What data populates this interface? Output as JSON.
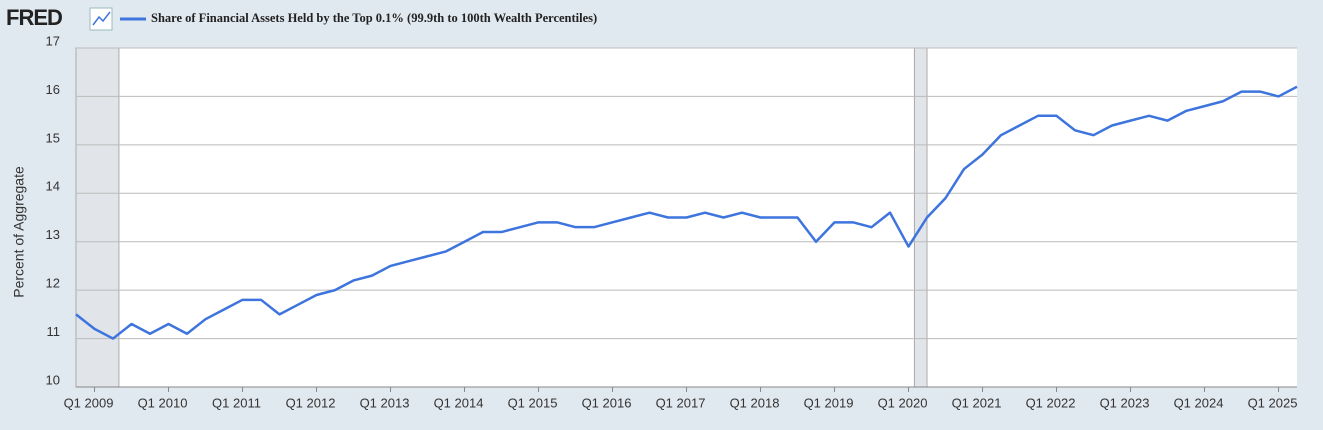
{
  "logo": "FRED",
  "chart_data": {
    "type": "line",
    "y_label": "Percent of Aggregate",
    "xlim": [
      2008.75,
      2025.25
    ],
    "ylim": [
      10,
      17
    ],
    "yticks": [
      10,
      11,
      12,
      13,
      14,
      15,
      16,
      17
    ],
    "xticks": [
      {
        "value": 2009,
        "label": "Q1 2009"
      },
      {
        "value": 2010,
        "label": "Q1 2010"
      },
      {
        "value": 2011,
        "label": "Q1 2011"
      },
      {
        "value": 2012,
        "label": "Q1 2012"
      },
      {
        "value": 2013,
        "label": "Q1 2013"
      },
      {
        "value": 2014,
        "label": "Q1 2014"
      },
      {
        "value": 2015,
        "label": "Q1 2015"
      },
      {
        "value": 2016,
        "label": "Q1 2016"
      },
      {
        "value": 2017,
        "label": "Q1 2017"
      },
      {
        "value": 2018,
        "label": "Q1 2018"
      },
      {
        "value": 2019,
        "label": "Q1 2019"
      },
      {
        "value": 2020,
        "label": "Q1 2020"
      },
      {
        "value": 2021,
        "label": "Q1 2021"
      },
      {
        "value": 2022,
        "label": "Q1 2022"
      },
      {
        "value": 2023,
        "label": "Q1 2023"
      },
      {
        "value": 2024,
        "label": "Q1 2024"
      },
      {
        "value": 2025,
        "label": "Q1 2025"
      }
    ],
    "grid": true,
    "recessions": [
      {
        "start": 2008.75,
        "end": 2009.33
      },
      {
        "start": 2020.08,
        "end": 2020.25
      }
    ],
    "x": [
      2008.75,
      2009,
      2009.25,
      2009.5,
      2009.75,
      2010,
      2010.25,
      2010.5,
      2010.75,
      2011,
      2011.25,
      2011.5,
      2011.75,
      2012,
      2012.25,
      2012.5,
      2012.75,
      2013,
      2013.25,
      2013.5,
      2013.75,
      2014,
      2014.25,
      2014.5,
      2014.75,
      2015,
      2015.25,
      2015.5,
      2015.75,
      2016,
      2016.25,
      2016.5,
      2016.75,
      2017,
      2017.25,
      2017.5,
      2017.75,
      2018,
      2018.25,
      2018.5,
      2018.75,
      2019,
      2019.25,
      2019.5,
      2019.75,
      2020,
      2020.25,
      2020.5,
      2020.75,
      2021,
      2021.25,
      2021.5,
      2021.75,
      2022,
      2022.25,
      2022.5,
      2022.75,
      2023,
      2023.25,
      2023.5,
      2023.75,
      2024,
      2024.25,
      2024.5,
      2024.75,
      2025,
      2025.25
    ],
    "series": [
      {
        "name": "Share of Financial Assets Held by the Top 0.1% (99.9th to 100th Wealth Percentiles)",
        "color": "#3d74dd",
        "values": [
          11.5,
          11.2,
          11.0,
          11.3,
          11.1,
          11.3,
          11.1,
          11.4,
          11.6,
          11.8,
          11.8,
          11.5,
          11.7,
          11.9,
          12.0,
          12.2,
          12.3,
          12.5,
          12.6,
          12.7,
          12.8,
          13.0,
          13.2,
          13.2,
          13.3,
          13.4,
          13.4,
          13.3,
          13.3,
          13.4,
          13.5,
          13.6,
          13.5,
          13.5,
          13.6,
          13.5,
          13.6,
          13.5,
          13.5,
          13.5,
          13.0,
          13.4,
          13.4,
          13.3,
          13.6,
          12.9,
          13.5,
          13.9,
          14.5,
          14.8,
          15.2,
          15.4,
          15.6,
          15.6,
          15.3,
          15.2,
          15.4,
          15.5,
          15.6,
          15.5,
          15.7,
          15.8,
          15.9,
          16.1,
          16.1,
          16.0,
          16.2
        ]
      }
    ]
  }
}
